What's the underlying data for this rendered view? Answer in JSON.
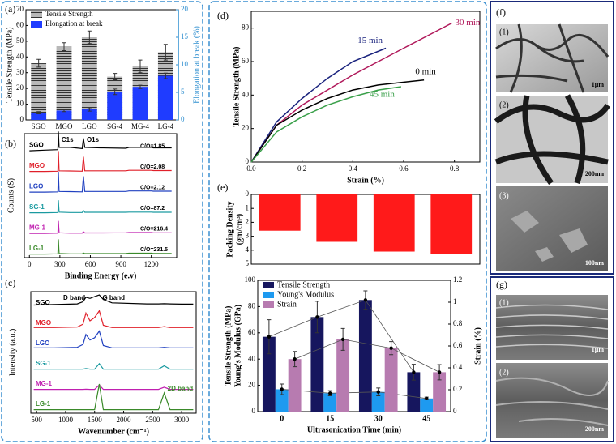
{
  "chart_data": [
    {
      "type": "bar",
      "panel_label": "(a)",
      "barmode": "overlay",
      "categories": [
        "SGO",
        "MGO",
        "LGO",
        "SG-4",
        "MG-4",
        "LG-4"
      ],
      "series": [
        {
          "name": "Tensile Strength",
          "color": "#9a9a9a",
          "pattern": "horizontal-lines",
          "values": [
            36,
            46.5,
            52.5,
            27.5,
            34,
            43
          ],
          "errors": [
            2.5,
            2.5,
            4,
            2,
            4,
            5
          ]
        },
        {
          "name": "Elongation at break",
          "color": "#1f3cff",
          "axis": "y2",
          "values": [
            1.3,
            1.7,
            1.9,
            5.1,
            6,
            8
          ],
          "errors": [
            0.2,
            0.2,
            0.3,
            0.5,
            0.3,
            0.5
          ]
        }
      ],
      "y_label": "Tensile Strength (MPa)",
      "y2_label": "Elongation at break (%)",
      "y2_color": "#2f8fd0",
      "ylim": [
        0,
        70
      ],
      "yticks": [
        0,
        10,
        20,
        30,
        40,
        50,
        60,
        70
      ],
      "y2lim": [
        0,
        20
      ],
      "y2ticks": [
        0,
        5,
        10,
        15,
        20
      ],
      "legend": "upper-left"
    },
    {
      "type": "line",
      "panel_label": "(b)",
      "offset": true,
      "x": [
        0,
        150,
        280,
        285,
        292,
        400,
        520,
        532,
        545,
        700,
        950,
        980,
        1200,
        1220,
        1400
      ],
      "series": [
        {
          "name": "SGO",
          "color": "#000000",
          "annotation": "C/O=1.85",
          "values": [
            5,
            8,
            10,
            90,
            20,
            20,
            15,
            60,
            20,
            18,
            16,
            20,
            20,
            18,
            18
          ]
        },
        {
          "name": "MGO",
          "color": "#e0202a",
          "annotation": "C/O=2.08",
          "values": [
            5,
            5,
            6,
            95,
            8,
            7,
            6,
            70,
            8,
            8,
            8,
            10,
            10,
            9,
            9
          ]
        },
        {
          "name": "LGO",
          "color": "#2040c0",
          "annotation": "C/O=2.12",
          "values": [
            5,
            5,
            6,
            95,
            8,
            7,
            6,
            75,
            8,
            8,
            8,
            10,
            10,
            9,
            9
          ]
        },
        {
          "name": "SG-1",
          "color": "#1a9aa0",
          "annotation": "C/O=87.2",
          "values": [
            5,
            5,
            6,
            60,
            8,
            6,
            6,
            15,
            7,
            7,
            7,
            8,
            8,
            7,
            7
          ]
        },
        {
          "name": "MG-1",
          "color": "#c020b0",
          "annotation": "C/O=216.4",
          "values": [
            5,
            5,
            6,
            60,
            8,
            6,
            6,
            12,
            7,
            7,
            8,
            9,
            9,
            8,
            8
          ]
        },
        {
          "name": "LG-1",
          "color": "#3a8a2a",
          "annotation": "C/O=231.5",
          "values": [
            5,
            5,
            6,
            70,
            8,
            6,
            6,
            10,
            7,
            7,
            8,
            9,
            9,
            8,
            8
          ]
        }
      ],
      "annotations": [
        {
          "text": "C1s",
          "x": 284
        },
        {
          "text": "O1s",
          "x": 532
        }
      ],
      "x_label": "Binding Energy (e.v)",
      "y_label": "Counts (S)",
      "ylim": [
        0,
        100
      ],
      "xlim": [
        -50,
        1450
      ],
      "xticks": [
        0,
        300,
        600,
        900,
        1200
      ]
    },
    {
      "type": "line",
      "panel_label": "(c)",
      "offset": true,
      "x": [
        450,
        800,
        1200,
        1300,
        1350,
        1420,
        1500,
        1580,
        1650,
        1800,
        2400,
        2600,
        2700,
        2800,
        3000,
        3200
      ],
      "series": [
        {
          "name": "SGO",
          "color": "#000000",
          "values": [
            20,
            22,
            25,
            35,
            55,
            50,
            58,
            65,
            45,
            30,
            25,
            25,
            26,
            25,
            24,
            24
          ]
        },
        {
          "name": "MGO",
          "color": "#e0202a",
          "values": [
            10,
            10,
            12,
            25,
            75,
            40,
            55,
            85,
            20,
            10,
            10,
            10,
            14,
            10,
            10,
            10
          ]
        },
        {
          "name": "LGO",
          "color": "#2040c0",
          "values": [
            10,
            10,
            12,
            25,
            70,
            45,
            55,
            85,
            20,
            10,
            10,
            10,
            12,
            10,
            10,
            10
          ]
        },
        {
          "name": "SG-1",
          "color": "#1a9aa0",
          "values": [
            5,
            5,
            5,
            5,
            8,
            5,
            5,
            30,
            5,
            5,
            5,
            5,
            20,
            5,
            5,
            5
          ]
        },
        {
          "name": "MG-1",
          "color": "#c020b0",
          "values": [
            5,
            5,
            5,
            5,
            6,
            5,
            5,
            25,
            5,
            5,
            5,
            5,
            15,
            5,
            5,
            5
          ]
        },
        {
          "name": "LG-1",
          "color": "#3a8a2a",
          "values": [
            5,
            5,
            5,
            5,
            5,
            5,
            5,
            120,
            5,
            5,
            5,
            5,
            80,
            5,
            5,
            5
          ]
        }
      ],
      "annotations": [
        {
          "text": "D band",
          "x": 1350
        },
        {
          "text": "G band",
          "x": 1580
        },
        {
          "text": "2D band",
          "x": 2700
        }
      ],
      "x_label": "Wavenumber (cm⁻¹)",
      "y_label": "Intensity (a.u.)",
      "ylim": [
        0,
        100
      ],
      "xlim": [
        400,
        3250
      ],
      "xticks": [
        500,
        1000,
        1500,
        2000,
        2500,
        3000
      ]
    },
    {
      "type": "line",
      "panel_label": "(d)",
      "series": [
        {
          "name": "15 min",
          "color": "#1a237e",
          "x": [
            0,
            0.1,
            0.2,
            0.3,
            0.4,
            0.53
          ],
          "values": [
            0,
            24,
            38,
            50,
            60,
            68
          ]
        },
        {
          "name": "30 min",
          "color": "#b0185a",
          "x": [
            0,
            0.1,
            0.2,
            0.4,
            0.6,
            0.79
          ],
          "values": [
            0,
            22,
            34,
            52,
            68,
            83
          ]
        },
        {
          "name": "0 min",
          "color": "#000000",
          "x": [
            0,
            0.1,
            0.2,
            0.3,
            0.4,
            0.5,
            0.68
          ],
          "values": [
            0,
            22,
            31,
            38,
            43,
            46,
            49
          ]
        },
        {
          "name": "45 min",
          "color": "#3aa04a",
          "x": [
            0,
            0.1,
            0.2,
            0.3,
            0.4,
            0.5,
            0.59
          ],
          "values": [
            0,
            18,
            27,
            34,
            39,
            43,
            45
          ]
        }
      ],
      "x_label": "Strain (%)",
      "y_label": "Tensile Strength (MPa)",
      "xlim": [
        0,
        0.9
      ],
      "xticks": [
        {
          "value": 0,
          "label": "0.0"
        },
        0.2,
        0.4,
        0.6,
        0.8
      ],
      "ylim": [
        0,
        90
      ],
      "yticks": [
        0,
        20,
        40,
        60,
        80
      ]
    },
    {
      "type": "bar",
      "panel_label": "(e)",
      "categories": [
        null,
        null,
        null,
        null
      ],
      "values": [
        2.6,
        3.4,
        4.1,
        4.3
      ],
      "color": "#ff1a1a",
      "y_label": [
        "Packing Density",
        "(gm/cm³)"
      ],
      "y_inverted": true,
      "ylim": [
        0,
        5
      ],
      "yticks": [
        0,
        1,
        2,
        3,
        4,
        5
      ]
    },
    {
      "type": "bar",
      "barmode": "group",
      "markers": true,
      "categories": [
        "0",
        "15",
        "30",
        "45"
      ],
      "series": [
        {
          "name": "Tensile Strength",
          "color": "#16165e",
          "values": [
            57,
            72,
            85,
            30
          ],
          "errors": [
            13,
            12,
            7,
            6
          ]
        },
        {
          "name": "Young's Modulus",
          "color": "#1e9af0",
          "values": [
            17,
            14,
            15,
            10
          ],
          "errors": [
            4,
            2,
            3,
            1
          ]
        },
        {
          "name": "Strain",
          "color": "#b77bb0",
          "axis": "y2",
          "values": [
            0.48,
            0.66,
            0.58,
            0.36
          ],
          "errors": [
            0.07,
            0.1,
            0.06,
            0.07
          ]
        }
      ],
      "x_label": "Ultrasonication Time (min)",
      "y_label": [
        "Tensile Strength (MPa)",
        "Young's Modulus (GPa)"
      ],
      "y2_label": "Strain (%)",
      "ylim": [
        0,
        100
      ],
      "yticks": [
        0,
        20,
        40,
        60,
        80,
        100
      ],
      "y2lim": [
        0,
        1.2
      ],
      "y2ticks": [
        0,
        0.2,
        0.4,
        0.6,
        0.8,
        1,
        1.2
      ],
      "legend": "upper-left"
    }
  ],
  "images": {
    "f": {
      "label": "(f)",
      "panels": [
        {
          "label": "(1)",
          "scale": "1μm"
        },
        {
          "label": "(2)",
          "scale": "200nm"
        },
        {
          "label": "(3)",
          "scale": "100nm"
        }
      ]
    },
    "g": {
      "label": "(g)",
      "panels": [
        {
          "label": "(1)",
          "scale": "1μm"
        },
        {
          "label": "(2)",
          "scale": "200nm"
        }
      ]
    }
  }
}
